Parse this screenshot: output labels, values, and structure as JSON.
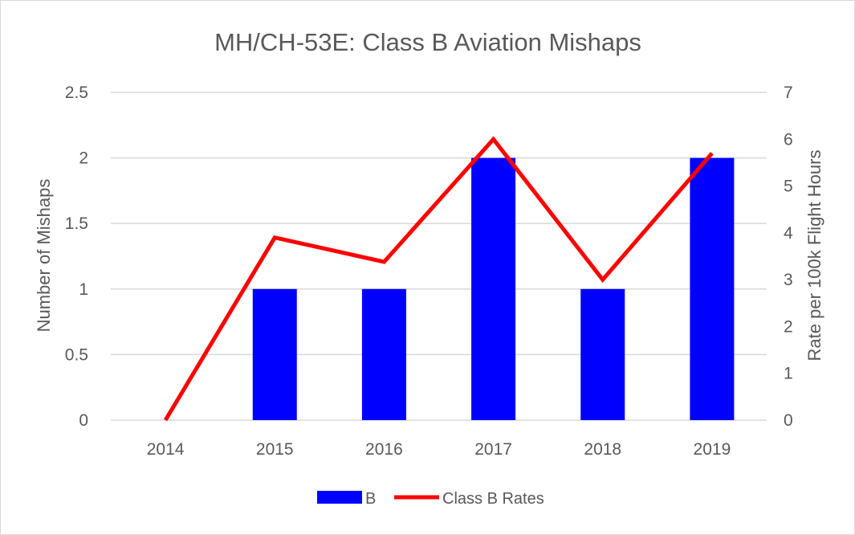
{
  "chart_data": {
    "type": "bar",
    "title": "MH/CH-53E: Class B Aviation Mishaps",
    "categories": [
      "2014",
      "2015",
      "2016",
      "2017",
      "2018",
      "2019"
    ],
    "series": [
      {
        "name": "B",
        "type": "bar",
        "axis": "left",
        "values": [
          0,
          1,
          1,
          2,
          1,
          2
        ]
      },
      {
        "name": "Class B Rates",
        "type": "line",
        "axis": "right",
        "values": [
          0,
          3.9,
          3.38,
          6.0,
          3.0,
          5.7
        ]
      }
    ],
    "ylabel": "Number of Mishaps",
    "y2label": "Rate per 100k Flight Hours",
    "ylim": [
      0,
      2.5
    ],
    "y2lim": [
      0,
      7
    ],
    "yticks": [
      "0",
      "0.5",
      "1",
      "1.5",
      "2",
      "2.5"
    ],
    "y2ticks": [
      "0",
      "1",
      "2",
      "3",
      "4",
      "5",
      "6",
      "7"
    ],
    "grid": true,
    "legend": "bottom-center",
    "colors": {
      "bar": "#0000ff",
      "line": "#ff0000",
      "grid": "#d9d9d9",
      "text": "#595959"
    }
  }
}
